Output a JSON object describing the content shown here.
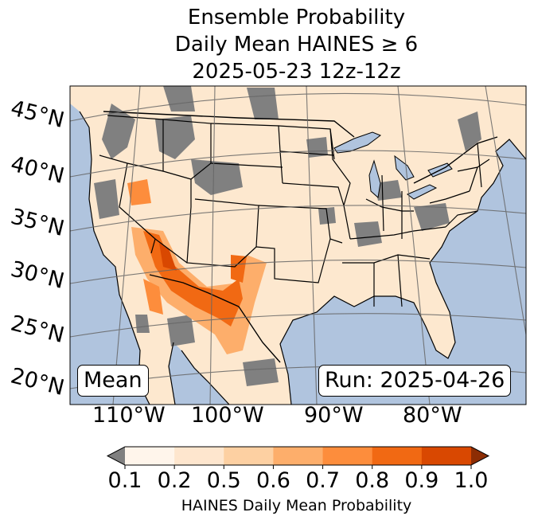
{
  "title": {
    "line1": "Ensemble Probability",
    "line2": "Daily Mean HAINES ≥ 6",
    "line3": "2025-05-23 12z-12z"
  },
  "map": {
    "latitude_labels": [
      "45°N",
      "40°N",
      "35°N",
      "30°N",
      "25°N",
      "20°N"
    ],
    "longitude_labels": [
      "110°W",
      "100°W",
      "90°W",
      "80°W"
    ],
    "colors": {
      "ocean": "#b0c4de",
      "land_low": "#fde8cf",
      "missing": "#808080"
    }
  },
  "annotations": {
    "left_box": "Mean",
    "right_box": "Run: 2025-04-26"
  },
  "colorbar": {
    "ticks": [
      "0.1",
      "0.2",
      "0.5",
      "0.6",
      "0.7",
      "0.8",
      "0.9",
      "1.0"
    ],
    "colors": [
      "#fff5eb",
      "#fee6ce",
      "#fdd0a2",
      "#fdae6b",
      "#fd8d3c",
      "#f16913",
      "#d94801",
      "#8c2d04"
    ],
    "under_color": "#808080",
    "label": "HAINES Daily Mean Probability"
  }
}
